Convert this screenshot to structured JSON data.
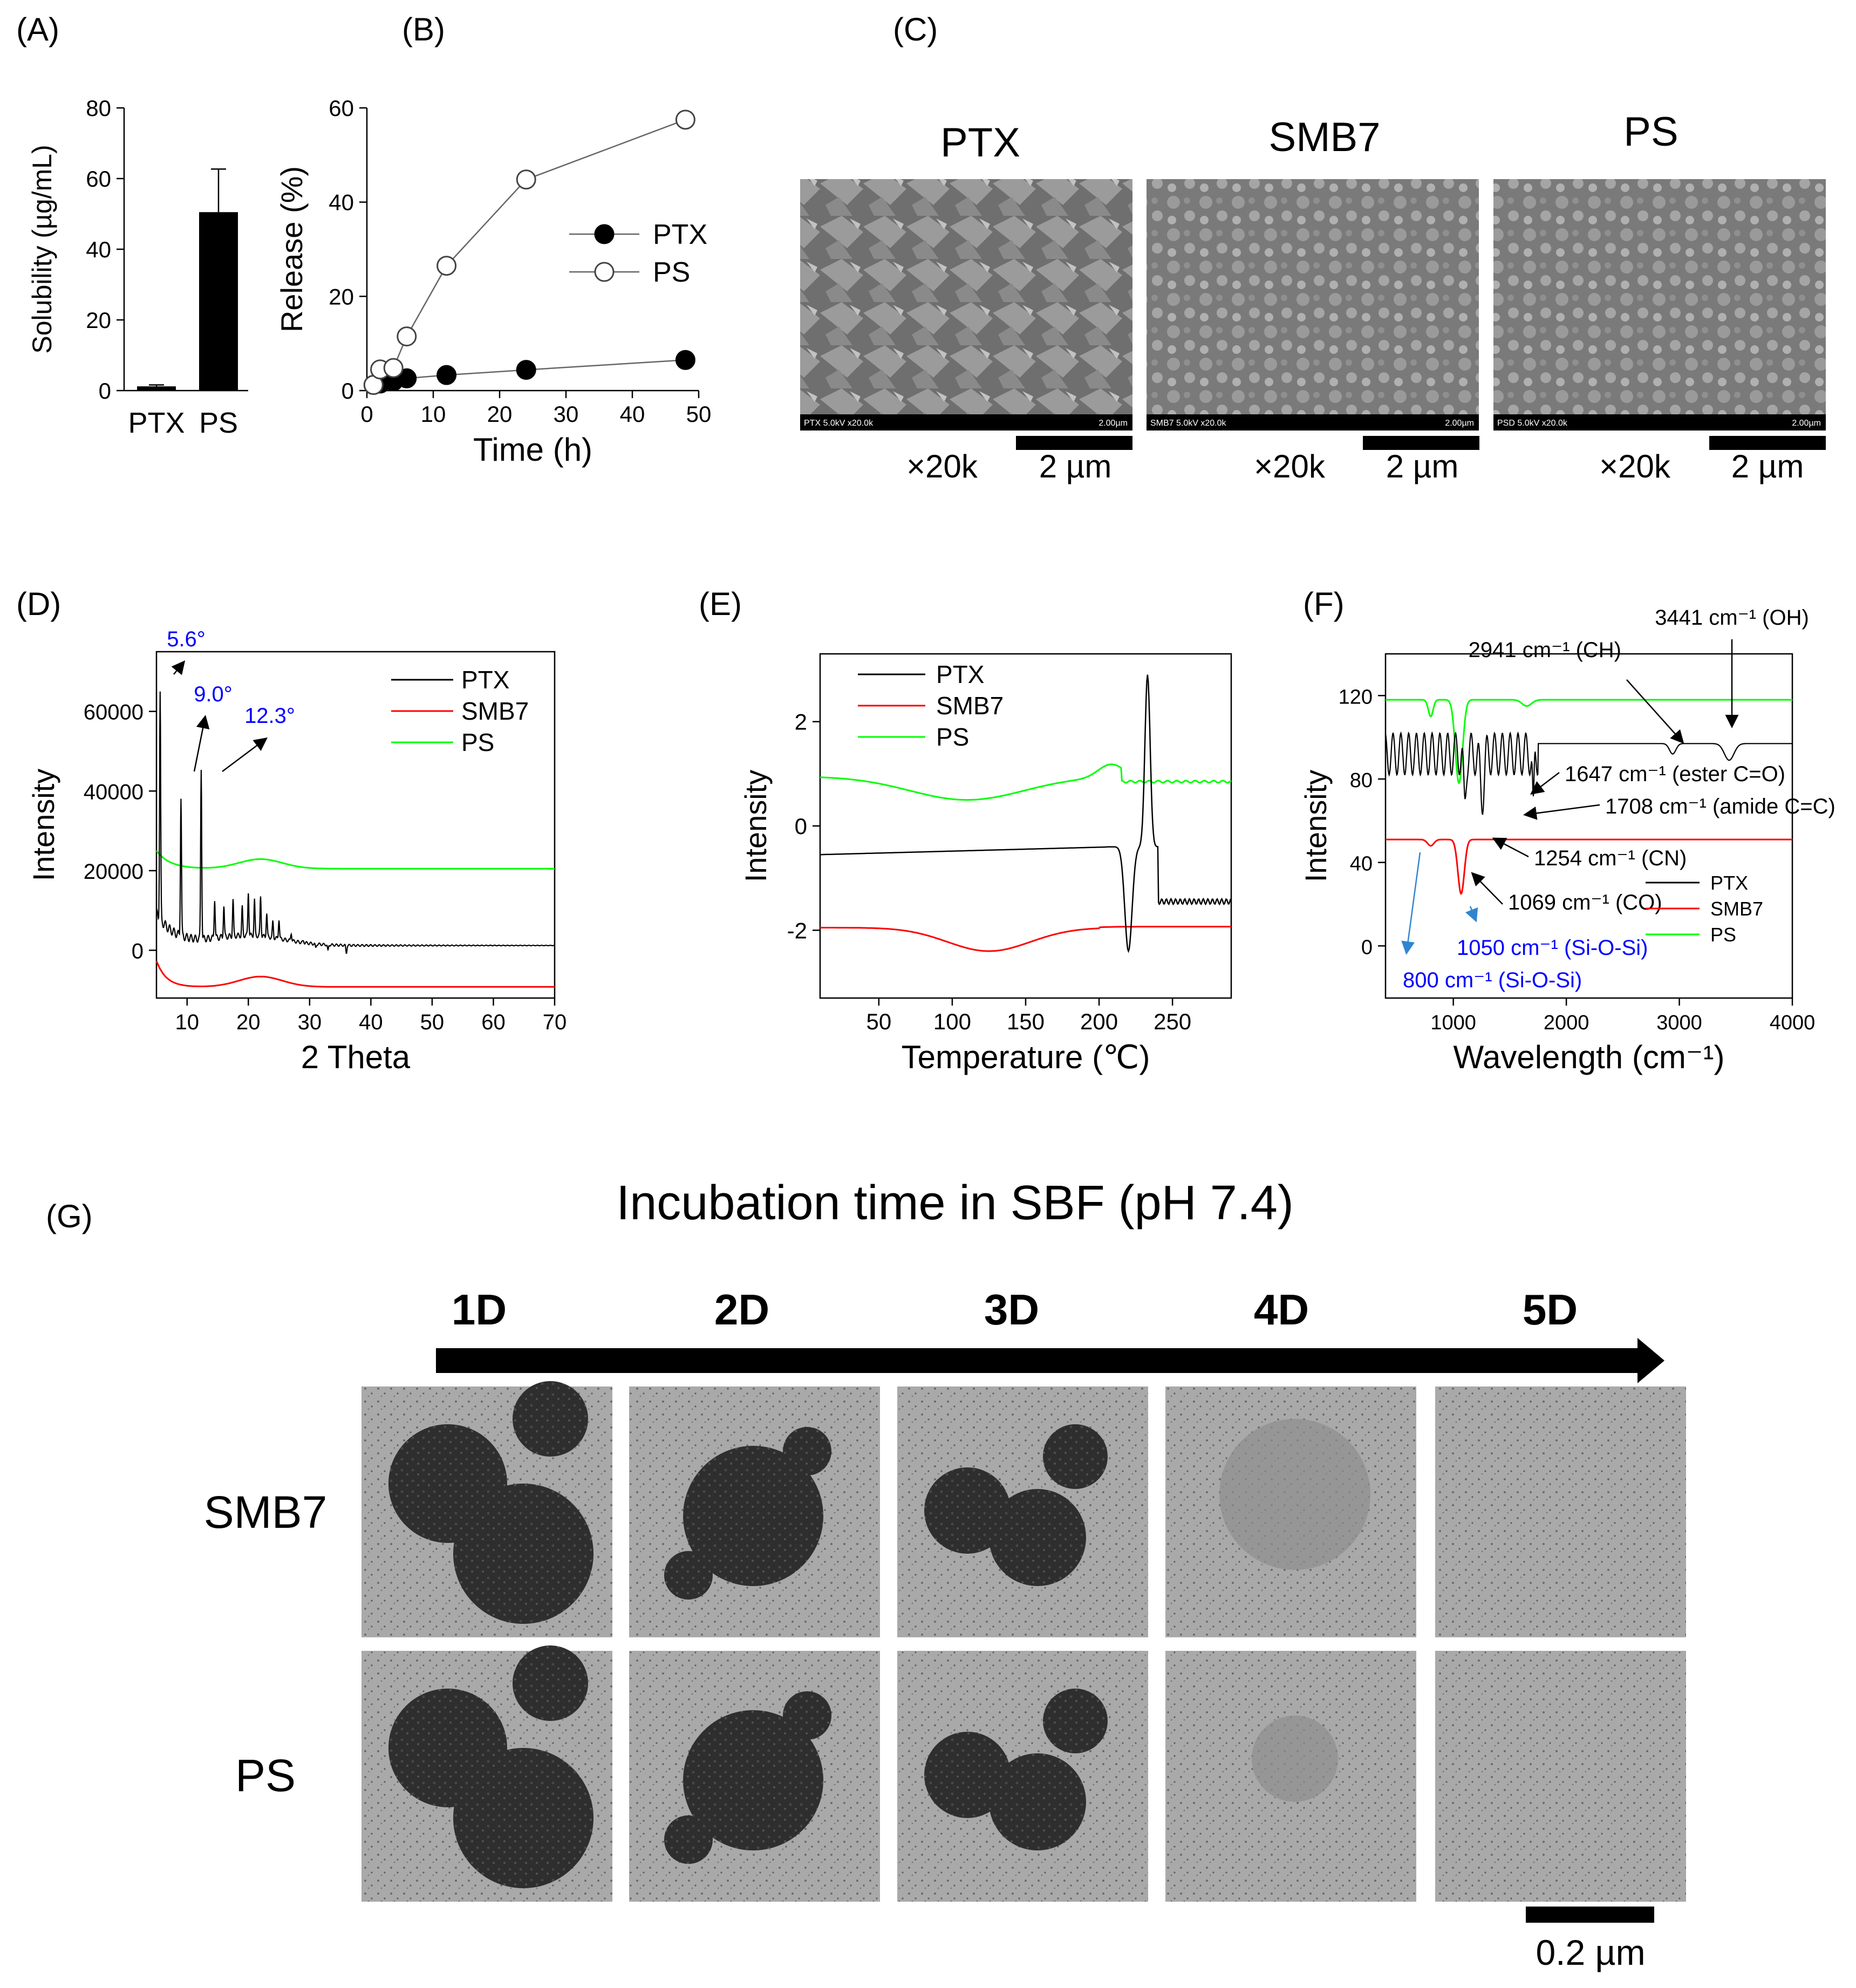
{
  "panel_labels": [
    "(A)",
    "(B)",
    "(C)",
    "(D)",
    "(E)",
    "(F)",
    "(G)"
  ],
  "colors": {
    "ptx": "#000000",
    "smb7": "#ff0000",
    "ps": "#00ff00",
    "annot_blue": "#0000ff",
    "arrow_blue": "#2f86d0"
  },
  "chart_data": [
    {
      "id": "A",
      "type": "bar",
      "categories": [
        "PTX",
        "PS"
      ],
      "values": [
        1.2,
        50.5
      ],
      "errors": [
        0.4,
        12.2
      ],
      "ylabel": "Solubility (µg/mL)",
      "ylim": [
        0,
        80
      ],
      "yticks": [
        "0",
        "20",
        "40",
        "60",
        "80"
      ]
    },
    {
      "id": "B",
      "type": "line",
      "xlabel": "Time (h)",
      "ylabel": "Release (%)",
      "xlim": [
        0,
        50
      ],
      "ylim": [
        0,
        60
      ],
      "xticks": [
        "0",
        "10",
        "20",
        "30",
        "40",
        "50"
      ],
      "yticks": [
        "0",
        "20",
        "40",
        "60"
      ],
      "legend_position": "right",
      "series": [
        {
          "name": "PTX",
          "x": [
            1,
            2,
            4,
            6,
            12,
            24,
            48
          ],
          "y": [
            1.2,
            1.5,
            2.0,
            2.6,
            3.3,
            4.4,
            6.5
          ]
        },
        {
          "name": "PS",
          "x": [
            1,
            2,
            4,
            6,
            12,
            24,
            48
          ],
          "y": [
            1.2,
            4.5,
            4.8,
            11.5,
            26.5,
            44.8,
            57.5
          ]
        }
      ]
    },
    {
      "id": "D",
      "type": "line",
      "xlabel": "2 Theta",
      "ylabel": "Intensity",
      "xlim": [
        5,
        70
      ],
      "ylim": [
        -12000,
        75000
      ],
      "xticks": [
        "10",
        "20",
        "30",
        "40",
        "50",
        "60",
        "70"
      ],
      "yticks": [
        "0",
        "20000",
        "40000",
        "60000"
      ],
      "legend_position": "top-right",
      "annotations": [
        "5.6°",
        "9.0°",
        "12.3°"
      ],
      "series": [
        {
          "name": "PTX",
          "x": [
            5.6,
            9.0,
            12.3
          ],
          "y": [
            61000,
            39000,
            47000
          ]
        },
        {
          "name": "SMB7",
          "x": [
            5,
            10,
            22,
            70
          ],
          "y": [
            -2500,
            -7500,
            -6500,
            -9000
          ]
        },
        {
          "name": "PS",
          "x": [
            5,
            10,
            22,
            70
          ],
          "y": [
            25000,
            22000,
            22800,
            20500
          ]
        }
      ]
    },
    {
      "id": "E",
      "type": "line",
      "xlabel": "Temperature (℃)",
      "ylabel": "Intensity",
      "xlim": [
        10,
        290
      ],
      "ylim": [
        -3.3,
        3.3
      ],
      "xticks": [
        "50",
        "100",
        "150",
        "200",
        "250"
      ],
      "yticks": [
        "-2",
        "0",
        "2"
      ],
      "legend_position": "top-left",
      "series": [
        {
          "name": "PTX",
          "x": [
            10,
            210,
            222,
            233,
            290
          ],
          "y": [
            -0.5,
            -0.4,
            -2.4,
            2.9,
            -1.5
          ]
        },
        {
          "name": "SMB7",
          "x": [
            10,
            125,
            290
          ],
          "y": [
            -1.9,
            -2.4,
            -1.9
          ]
        },
        {
          "name": "PS",
          "x": [
            10,
            110,
            210,
            290
          ],
          "y": [
            1.0,
            0.5,
            1.05,
            0.85
          ]
        }
      ]
    },
    {
      "id": "F",
      "type": "line",
      "xlabel": "Wavelength (cm⁻¹)",
      "ylabel": "Intensity",
      "xlim": [
        400,
        4000
      ],
      "ylim": [
        -25,
        140
      ],
      "xticks": [
        "1000",
        "2000",
        "3000",
        "4000"
      ],
      "yticks": [
        "0",
        "40",
        "80",
        "120"
      ],
      "legend_position": "bottom-right",
      "annotations": [
        "3441 cm⁻¹ (OH)",
        "2941 cm⁻¹ (CH)",
        "1647 cm⁻¹ (ester C=O)",
        "1708 cm⁻¹ (amide C=C)",
        "1254 cm⁻¹ (CN)",
        "1069 cm⁻¹ (CO)",
        "1050 cm⁻¹ (Si-O-Si)",
        "800 cm⁻¹ (Si-O-Si)"
      ],
      "series": [
        {
          "name": "PTX",
          "x": [
            400,
            1254,
            1708,
            2941,
            3441,
            4000
          ],
          "y": [
            95,
            40,
            70,
            92,
            88,
            97
          ]
        },
        {
          "name": "SMB7",
          "x": [
            400,
            1069,
            4000
          ],
          "y": [
            50,
            25,
            51
          ]
        },
        {
          "name": "PS",
          "x": [
            400,
            1050,
            4000
          ],
          "y": [
            118,
            75,
            118
          ]
        }
      ]
    }
  ],
  "panel_C": {
    "titles": [
      "PTX",
      "SMB7",
      "PS"
    ],
    "info_bars": [
      "PTX 5.0kV x20.0k",
      "SMB7 5.0kV x20.0k",
      "PSD 5.0kV x20.0k"
    ],
    "info_scale": "2.00µm",
    "magnification": "×20k",
    "scale_label": "2 µm"
  },
  "panel_G": {
    "title": "Incubation time in SBF (pH 7.4)",
    "days": [
      "1D",
      "2D",
      "3D",
      "4D",
      "5D"
    ],
    "rows": [
      "SMB7",
      "PS"
    ],
    "scale_label": "0.2 µm"
  }
}
